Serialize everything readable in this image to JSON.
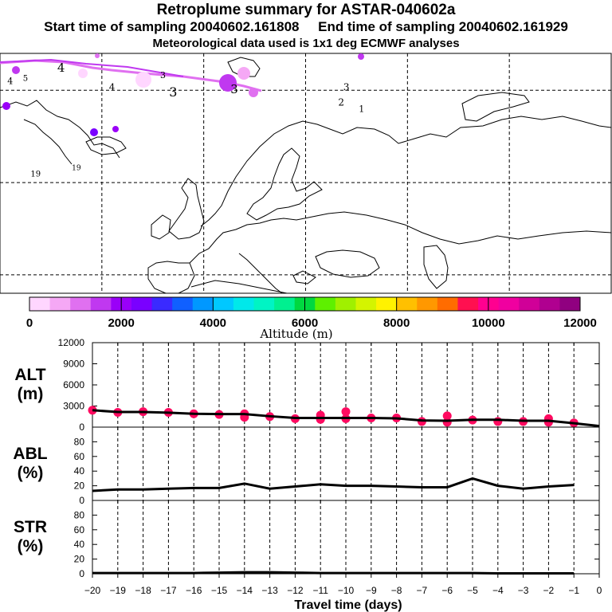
{
  "header": {
    "title": "Retroplume summary for ASTAR-040602a",
    "start_label": "Start time of sampling 20040602.161808",
    "end_label": "End time of sampling 20040602.161929",
    "met_label": "Meteorological data used is 1x1 deg ECMWF analyses"
  },
  "colorbar": {
    "title": "Altitude (m)",
    "tick_labels": [
      "0",
      "2000",
      "4000",
      "6000",
      "8000",
      "10000",
      "12000"
    ],
    "min": 0,
    "max": 12000,
    "colors": [
      "#ffd6ff",
      "#f5a8f5",
      "#e070f0",
      "#c038f0",
      "#9a00f8",
      "#7a00ff",
      "#3a2aff",
      "#1060ff",
      "#0098ff",
      "#00c8ff",
      "#00e8ea",
      "#00f4c4",
      "#00f090",
      "#00d840",
      "#5ef000",
      "#a0f000",
      "#d4f400",
      "#fff200",
      "#ffc000",
      "#ff9800",
      "#ff6c00",
      "#ff1050",
      "#ff0090",
      "#f000a0",
      "#d00098",
      "#b00090",
      "#900080"
    ]
  },
  "map": {
    "labels": [
      {
        "text": "4",
        "lon": -38,
        "lat": 73,
        "size": 15
      },
      {
        "text": "4",
        "lon": -48,
        "lat": 71,
        "size": 11
      },
      {
        "text": "5",
        "lon": -45,
        "lat": 71.5,
        "size": 10
      },
      {
        "text": "4",
        "lon": -28,
        "lat": 70,
        "size": 12
      },
      {
        "text": "3",
        "lon": -18,
        "lat": 72,
        "size": 11
      },
      {
        "text": "3",
        "lon": -16,
        "lat": 69,
        "size": 16
      },
      {
        "text": "3",
        "lon": -4,
        "lat": 69.5,
        "size": 15
      },
      {
        "text": "3",
        "lon": 18,
        "lat": 70,
        "size": 12
      },
      {
        "text": "2",
        "lon": 17,
        "lat": 67.5,
        "size": 12
      },
      {
        "text": "1",
        "lon": 21,
        "lat": 66.5,
        "size": 11
      },
      {
        "text": "19",
        "lon": -43,
        "lat": 56,
        "size": 10
      },
      {
        "text": "19",
        "lon": -35,
        "lat": 57,
        "size": 9
      }
    ]
  },
  "chart_data": [
    {
      "type": "line",
      "panel": "ALT",
      "title": "ALT",
      "ylabel": "(m)",
      "xlabel": "Travel time (days)",
      "ylim": [
        0,
        12000
      ],
      "yticks": [
        0,
        3000,
        6000,
        9000,
        12000
      ],
      "xlim": [
        -20,
        0
      ],
      "xticks": [
        -20,
        -19,
        -18,
        -17,
        -16,
        -15,
        -14,
        -13,
        -12,
        -11,
        -10,
        -9,
        -8,
        -7,
        -6,
        -5,
        -4,
        -3,
        -2,
        -1,
        0
      ],
      "line": {
        "x": [
          -20,
          -19,
          -18,
          -17,
          -16,
          -15,
          -14,
          -13,
          -12,
          -11,
          -10,
          -9,
          -8,
          -7,
          -6,
          -5,
          -4,
          -3,
          -2,
          -1,
          0
        ],
        "y": [
          2400,
          2150,
          2150,
          2050,
          1900,
          1850,
          1850,
          1550,
          1300,
          1300,
          1300,
          1300,
          1250,
          950,
          900,
          1050,
          1050,
          900,
          900,
          550,
          150
        ]
      },
      "points": {
        "x": [
          -20,
          -19,
          -18,
          -17,
          -16,
          -15,
          -14,
          -14,
          -13,
          -12,
          -11,
          -11,
          -10,
          -10,
          -9,
          -8,
          -7,
          -6,
          -6,
          -5,
          -4,
          -3,
          -2,
          -2,
          -1
        ],
        "y": [
          2400,
          2100,
          2200,
          2100,
          1900,
          1800,
          1900,
          1400,
          1500,
          1200,
          1100,
          1700,
          1200,
          2200,
          1300,
          1300,
          800,
          700,
          1600,
          1000,
          800,
          800,
          1200,
          700,
          600
        ],
        "color": "#ff0a60"
      }
    },
    {
      "type": "line",
      "panel": "ABL",
      "title": "ABL",
      "ylabel": "(%)",
      "ylim": [
        0,
        100
      ],
      "yticks": [
        0,
        20,
        40,
        60,
        80
      ],
      "x": [
        -20,
        -19,
        -18,
        -17,
        -16,
        -15,
        -14,
        -13,
        -12,
        -11,
        -10,
        -9,
        -8,
        -7,
        -6,
        -5,
        -4,
        -3,
        -2,
        -1
      ],
      "y": [
        13,
        15,
        15,
        16,
        17,
        17,
        23,
        16,
        19,
        22,
        20,
        20,
        19,
        18,
        18,
        30,
        20,
        16,
        19,
        21
      ]
    },
    {
      "type": "line",
      "panel": "STR",
      "title": "STR",
      "ylabel": "(%)",
      "ylim": [
        0,
        100
      ],
      "yticks": [
        0,
        20,
        40,
        60,
        80
      ],
      "x": [
        -20,
        -19,
        -18,
        -17,
        -16,
        -15,
        -14,
        -13,
        -12,
        -11,
        -10,
        -9,
        -8,
        -7,
        -6,
        -5,
        -4,
        -3,
        -2,
        -1
      ],
      "y": [
        1,
        1,
        1,
        1,
        1,
        1.5,
        2,
        2,
        1.5,
        1,
        1,
        1,
        1,
        1,
        1,
        1,
        0.5,
        0.5,
        0.5,
        0.5
      ]
    }
  ]
}
